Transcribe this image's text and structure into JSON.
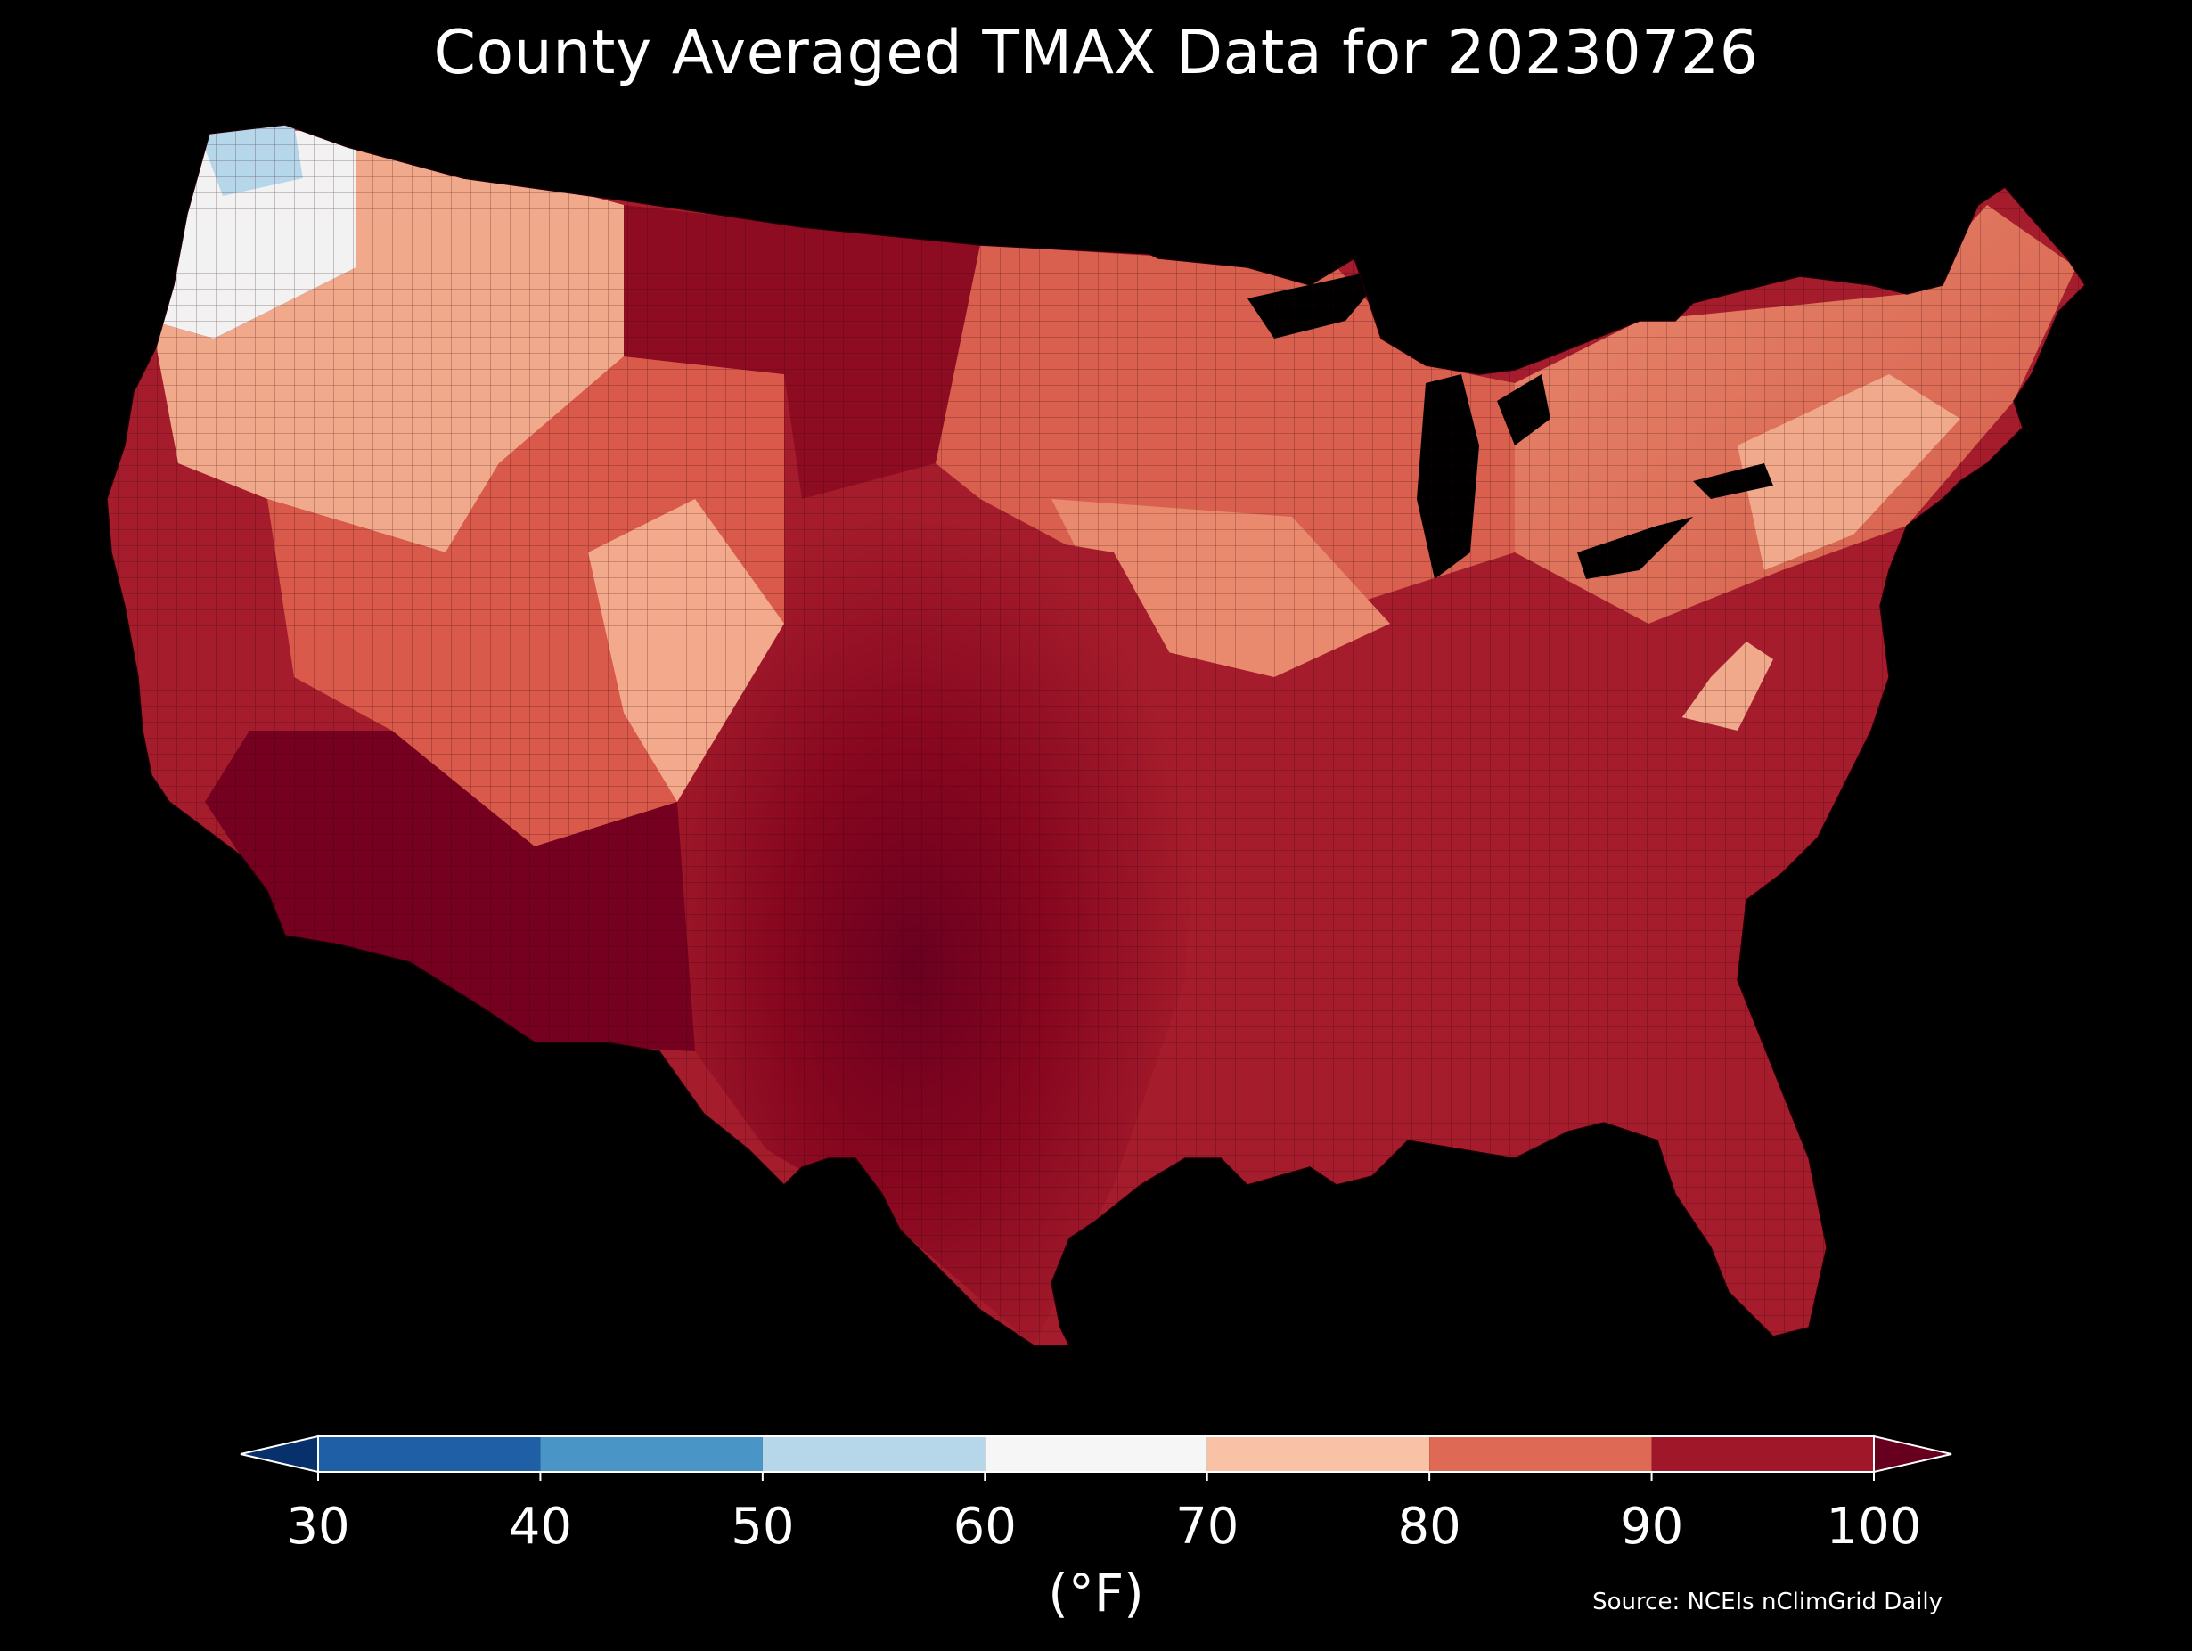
{
  "title": "County Averaged TMAX Data for 20230726",
  "colorbar": {
    "unit_label": "(°F)",
    "ticks": [
      "30",
      "40",
      "50",
      "60",
      "70",
      "80",
      "90",
      "100"
    ],
    "bins": [
      {
        "from": 30,
        "to": 40,
        "color": "#1f5fa6"
      },
      {
        "from": 40,
        "to": 50,
        "color": "#4895c6"
      },
      {
        "from": 50,
        "to": 60,
        "color": "#b6d7e9"
      },
      {
        "from": 60,
        "to": 70,
        "color": "#f6f6f6"
      },
      {
        "from": 70,
        "to": 80,
        "color": "#f9c2a6"
      },
      {
        "from": 80,
        "to": 90,
        "color": "#de6a55"
      },
      {
        "from": 90,
        "to": 100,
        "color": "#a0172a"
      }
    ],
    "under_color": "#08306b",
    "over_color": "#67001f"
  },
  "source": "Source: NCEIs nClimGrid Daily"
}
